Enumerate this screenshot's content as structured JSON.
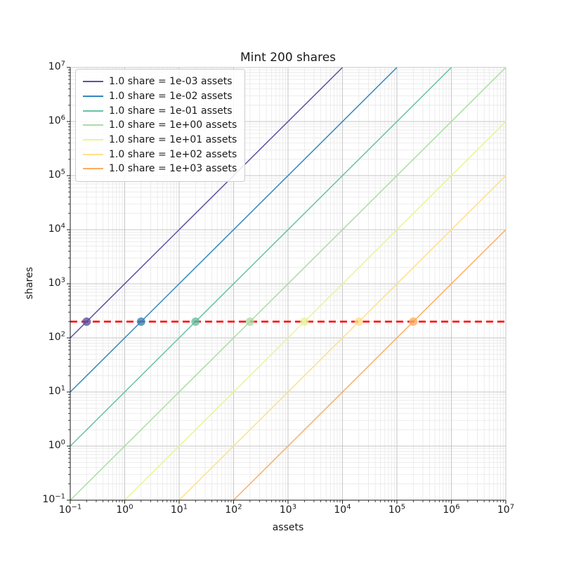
{
  "figure": {
    "title": "Mint 200 shares",
    "xlabel": "assets",
    "ylabel": "shares"
  },
  "chart_data": {
    "type": "line",
    "title": "Mint 200 shares",
    "xlabel": "assets",
    "ylabel": "shares",
    "x_scale": "log",
    "y_scale": "log",
    "xlim": [
      0.1,
      10000000
    ],
    "ylim": [
      0.1,
      10000000
    ],
    "grid": "both-major-and-minor",
    "legend_position": "upper-left",
    "tick_base": "10",
    "x_tick_exponents": [
      -1,
      0,
      1,
      2,
      3,
      4,
      5,
      6,
      7
    ],
    "y_tick_exponents": [
      -1,
      0,
      1,
      2,
      3,
      4,
      5,
      6,
      7
    ],
    "series": [
      {
        "label": "1.0 share = 1e-03 assets",
        "color": "#5e4fa2",
        "assets_per_share": 0.001,
        "endpoints": [
          [
            0.1,
            100
          ],
          [
            10000,
            10000000
          ]
        ],
        "marker": {
          "assets": 0.2,
          "shares": 200
        }
      },
      {
        "label": "1.0 share = 1e-02 assets",
        "color": "#3288bd",
        "assets_per_share": 0.01,
        "endpoints": [
          [
            0.1,
            10
          ],
          [
            100000,
            10000000
          ]
        ],
        "marker": {
          "assets": 2,
          "shares": 200
        }
      },
      {
        "label": "1.0 share = 1e-01 assets",
        "color": "#66c2a5",
        "assets_per_share": 0.1,
        "endpoints": [
          [
            0.1,
            1
          ],
          [
            1000000,
            10000000
          ]
        ],
        "marker": {
          "assets": 20,
          "shares": 200
        }
      },
      {
        "label": "1.0 share = 1e+00 assets",
        "color": "#abdda4",
        "assets_per_share": 1,
        "endpoints": [
          [
            0.1,
            0.1
          ],
          [
            10000000,
            10000000
          ]
        ],
        "marker": {
          "assets": 200,
          "shares": 200
        }
      },
      {
        "label": "1.0 share = 1e+01 assets",
        "color": "#e6f598",
        "assets_per_share": 10,
        "endpoints": [
          [
            1,
            0.1
          ],
          [
            10000000,
            1000000
          ]
        ],
        "marker": {
          "assets": 2000,
          "shares": 200
        }
      },
      {
        "label": "1.0 share = 1e+02 assets",
        "color": "#fee08b",
        "assets_per_share": 100,
        "endpoints": [
          [
            10,
            0.1
          ],
          [
            10000000,
            100000
          ]
        ],
        "marker": {
          "assets": 20000,
          "shares": 200
        }
      },
      {
        "label": "1.0 share = 1e+03 assets",
        "color": "#fdae61",
        "assets_per_share": 1000,
        "endpoints": [
          [
            100,
            0.1
          ],
          [
            10000000,
            10000
          ]
        ],
        "marker": {
          "assets": 200000,
          "shares": 200
        }
      }
    ],
    "reference_line": {
      "orientation": "horizontal",
      "shares": 200,
      "color": "#ff0000",
      "style": "dashed"
    },
    "style": {
      "grid_major_color": "#c6c6c6",
      "grid_minor_color": "#e8e8e8",
      "spine_color": "#1a1a1a",
      "background": "#ffffff",
      "line_width": 1.5,
      "marker_radius": 6
    }
  }
}
